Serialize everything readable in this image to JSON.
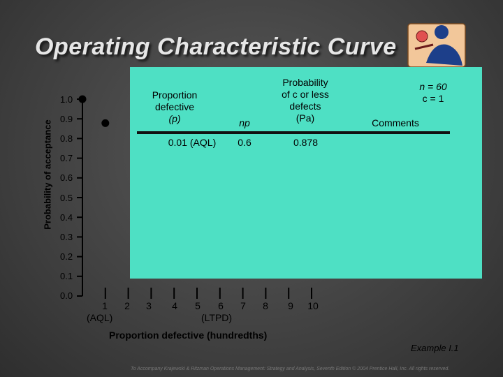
{
  "slide": {
    "title": "Operating Characteristic Curve",
    "example": "Example I.1",
    "footer": "To Accompany Krajewski & Ritzman Operations Management: Strategy and Analysis, Seventh Edition © 2004 Prentice Hall, Inc. All rights reserved."
  },
  "plan": {
    "n_line": "n = 60",
    "c_line": "c = 1"
  },
  "table": {
    "headers": {
      "proportion": [
        "Proportion",
        "defective",
        "(p)"
      ],
      "np": "np",
      "probability": [
        "Probability",
        "of c or less",
        "defects",
        "(Pa)"
      ],
      "comments": "Comments"
    },
    "rows": [
      {
        "proportion": "0.01 (AQL)",
        "np": "0.6",
        "probability": "0.878",
        "comments": ""
      }
    ]
  },
  "chart_data": {
    "type": "scatter",
    "xlabel": "Proportion defective (hundredths)",
    "ylabel": "Probability of acceptance",
    "xlim": [
      0,
      10
    ],
    "ylim": [
      0,
      1.0
    ],
    "y_ticks": [
      "0.0",
      "0.1",
      "0.2",
      "0.3",
      "0.4",
      "0.5",
      "0.6",
      "0.7",
      "0.8",
      "0.9",
      "1.0"
    ],
    "x_ticks": [
      "1",
      "2",
      "3",
      "4",
      "5",
      "6",
      "7",
      "8",
      "9",
      "10"
    ],
    "x_sublabels": [
      {
        "at": "1",
        "text": "(AQL)"
      },
      {
        "at": "6",
        "text": "(LTPD)"
      }
    ],
    "points": [
      {
        "x": 0,
        "y": 1.0
      },
      {
        "x": 1,
        "y": 0.878
      }
    ]
  },
  "colors": {
    "panel": "#4ee0c4",
    "background": "#404040",
    "title": "#e6e6e6"
  }
}
